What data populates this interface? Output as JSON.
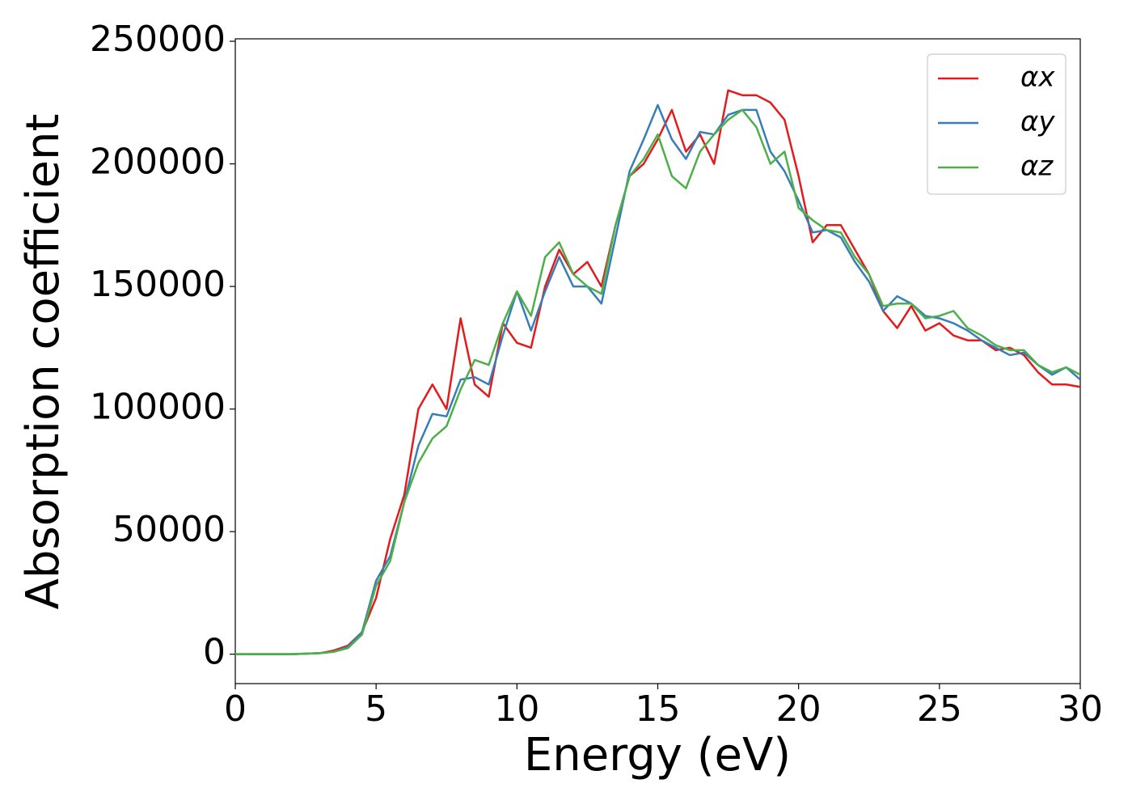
{
  "chart_data": {
    "type": "line",
    "xlabel": "Energy (eV)",
    "ylabel": "Absorption coefficient",
    "x": [
      0,
      0.5,
      1,
      1.5,
      2,
      2.5,
      3,
      3.5,
      4,
      4.5,
      5,
      5.5,
      6,
      6.5,
      7,
      7.5,
      8,
      8.5,
      9,
      9.5,
      10,
      10.5,
      11,
      11.5,
      12,
      12.5,
      13,
      13.5,
      14,
      14.5,
      15,
      15.5,
      16,
      16.5,
      17,
      17.5,
      18,
      18.5,
      19,
      19.5,
      20,
      20.5,
      21,
      21.5,
      22,
      22.5,
      23,
      23.5,
      24,
      24.5,
      25,
      25.5,
      26,
      26.5,
      27,
      27.5,
      28,
      28.5,
      29,
      29.5,
      30
    ],
    "series": [
      {
        "name": "αx",
        "color": "#e41a1c",
        "values": [
          0,
          0,
          0,
          0,
          0,
          200,
          400,
          1500,
          3500,
          9000,
          23000,
          47000,
          65000,
          100000,
          110000,
          100000,
          137000,
          110000,
          105000,
          135000,
          127000,
          125000,
          150000,
          165000,
          155000,
          160000,
          150000,
          175000,
          195000,
          200000,
          210000,
          222000,
          205000,
          212000,
          200000,
          230000,
          228000,
          228000,
          225000,
          218000,
          195000,
          168000,
          175000,
          175000,
          165000,
          155000,
          140000,
          133000,
          142000,
          132000,
          135000,
          130000,
          128000,
          128000,
          124000,
          125000,
          122000,
          115000,
          110000,
          110000,
          109000
        ]
      },
      {
        "name": "αy",
        "color": "#377eb8",
        "values": [
          0,
          0,
          0,
          0,
          0,
          200,
          400,
          1000,
          3000,
          9000,
          30000,
          40000,
          62000,
          85000,
          98000,
          97000,
          112000,
          113000,
          110000,
          130000,
          148000,
          132000,
          148000,
          162000,
          150000,
          150000,
          143000,
          170000,
          197000,
          210000,
          224000,
          210000,
          202000,
          213000,
          212000,
          220000,
          222000,
          222000,
          205000,
          197000,
          185000,
          172000,
          173000,
          170000,
          160000,
          152000,
          140000,
          146000,
          143000,
          138000,
          137000,
          135000,
          132000,
          128000,
          125000,
          122000,
          123000,
          118000,
          114000,
          117000,
          112000
        ]
      },
      {
        "name": "αz",
        "color": "#4daf4a",
        "values": [
          0,
          0,
          0,
          0,
          0,
          200,
          400,
          1000,
          2500,
          8000,
          28000,
          38000,
          62000,
          78000,
          88000,
          93000,
          108000,
          120000,
          118000,
          135000,
          148000,
          138000,
          162000,
          168000,
          155000,
          150000,
          147000,
          175000,
          195000,
          202000,
          212000,
          195000,
          190000,
          205000,
          212000,
          218000,
          222000,
          215000,
          200000,
          205000,
          182000,
          177000,
          173000,
          172000,
          162000,
          155000,
          142000,
          143000,
          143000,
          137000,
          138000,
          140000,
          133000,
          130000,
          126000,
          124000,
          124000,
          118000,
          115000,
          117000,
          114000
        ]
      }
    ],
    "xlim": [
      0,
      30
    ],
    "xticks": [
      0,
      5,
      10,
      15,
      20,
      25,
      30
    ],
    "ylim": [
      -12000,
      251000
    ],
    "yticks": [
      0,
      50000,
      100000,
      150000,
      200000,
      250000
    ],
    "grid": false,
    "legend": "upper right"
  }
}
